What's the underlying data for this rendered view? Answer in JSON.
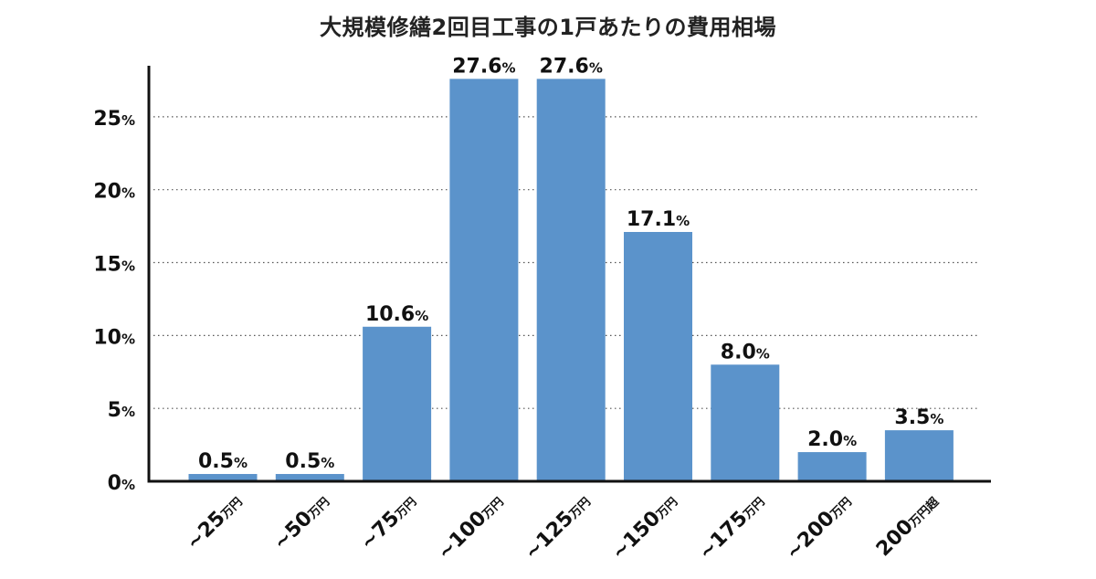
{
  "chart_data": {
    "type": "bar",
    "title": "大規模修繕2回目工事の1戸あたりの費用相場",
    "categories": [
      "~25万円",
      "~50万円",
      "~75万円",
      "~100万円",
      "~125万円",
      "~150万円",
      "~175万円",
      "~200万円",
      "200万円超"
    ],
    "category_parts": [
      {
        "main": "~25",
        "unit": "万円"
      },
      {
        "main": "~50",
        "unit": "万円"
      },
      {
        "main": "~75",
        "unit": "万円"
      },
      {
        "main": "~100",
        "unit": "万円"
      },
      {
        "main": "~125",
        "unit": "万円"
      },
      {
        "main": "~150",
        "unit": "万円"
      },
      {
        "main": "~175",
        "unit": "万円"
      },
      {
        "main": "~200",
        "unit": "万円"
      },
      {
        "main": "200",
        "unit": "万円超"
      }
    ],
    "values": [
      0.5,
      0.5,
      10.6,
      27.6,
      27.6,
      17.1,
      8.0,
      2.0,
      3.5
    ],
    "value_labels": [
      "0.5",
      "0.5",
      "10.6",
      "27.6",
      "27.6",
      "17.1",
      "8.0",
      "2.0",
      "3.5"
    ],
    "value_unit": "%",
    "yticks": [
      0,
      5,
      10,
      15,
      20,
      25
    ],
    "ytick_labels": [
      "0",
      "5",
      "10",
      "15",
      "20",
      "25"
    ],
    "ylim": [
      0,
      28.5
    ],
    "grid": "horizontal-dotted",
    "xlabel": "",
    "ylabel": "",
    "colors": {
      "bar": "#5b93cb",
      "axis": "#111111",
      "grid": "#555555",
      "text": "#111111"
    }
  }
}
